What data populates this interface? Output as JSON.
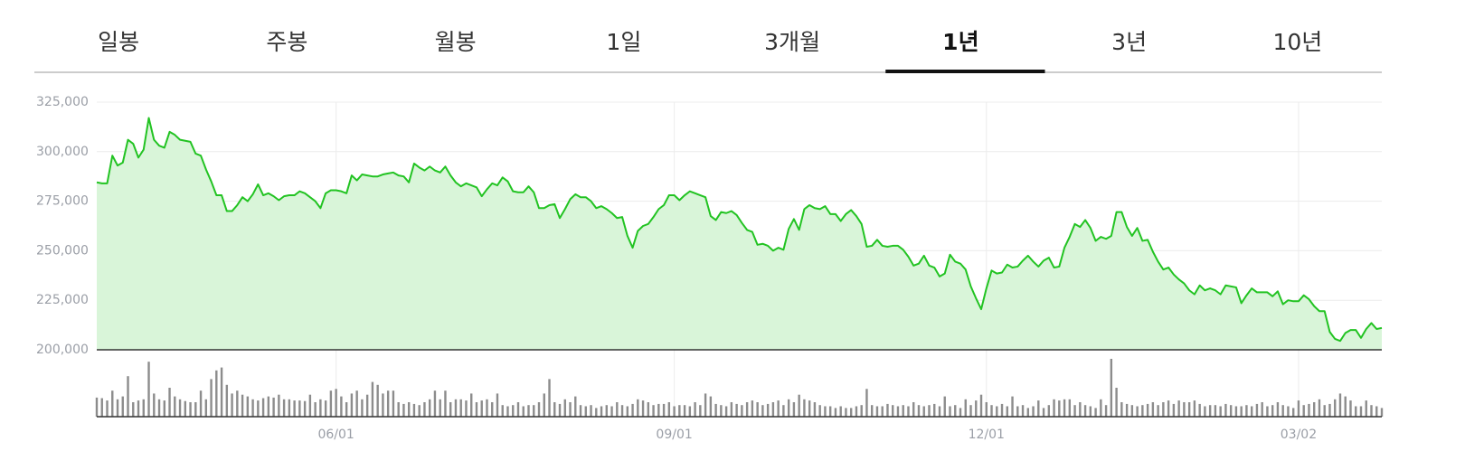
{
  "tabs": {
    "items": [
      "일봉",
      "주봉",
      "월봉",
      "1일",
      "3개월",
      "1년",
      "3년",
      "10년"
    ],
    "active": 5
  },
  "chart_data": {
    "type": "line",
    "categories": [
      null,
      null,
      null,
      null,
      null,
      null,
      null,
      null,
      null,
      null,
      null,
      null,
      null,
      null,
      null,
      null,
      null,
      null,
      null,
      null,
      null,
      null,
      null,
      null,
      null,
      null,
      null,
      null,
      null,
      null,
      null,
      null,
      null,
      null,
      null,
      null,
      null,
      null,
      null,
      null,
      null,
      null,
      null,
      null,
      null,
      null,
      "06/01",
      null,
      null,
      null,
      null,
      null,
      null,
      null,
      null,
      null,
      null,
      null,
      null,
      null,
      null,
      null,
      null,
      null,
      null,
      null,
      null,
      null,
      null,
      null,
      null,
      null,
      null,
      null,
      null,
      null,
      null,
      null,
      null,
      null,
      null,
      null,
      null,
      null,
      null,
      null,
      null,
      null,
      null,
      null,
      null,
      null,
      null,
      null,
      null,
      null,
      null,
      null,
      null,
      null,
      null,
      null,
      null,
      null,
      null,
      null,
      null,
      null,
      null,
      null,
      null,
      "09/01",
      null,
      null,
      null,
      null,
      null,
      null,
      null,
      null,
      null,
      null,
      null,
      null,
      null,
      null,
      null,
      null,
      null,
      null,
      null,
      null,
      null,
      null,
      null,
      null,
      null,
      null,
      null,
      null,
      null,
      null,
      null,
      null,
      null,
      null,
      null,
      null,
      null,
      null,
      null,
      null,
      null,
      null,
      null,
      null,
      null,
      null,
      null,
      null,
      null,
      null,
      null,
      null,
      null,
      null,
      null,
      null,
      null,
      null,
      null,
      "12/01",
      null,
      null,
      null,
      null,
      null,
      null,
      null,
      null,
      null,
      null,
      null,
      null,
      null,
      null,
      null,
      null,
      null,
      null,
      null,
      null,
      null,
      null,
      null,
      null,
      null,
      null,
      null,
      null,
      null,
      null,
      null,
      null,
      null,
      null,
      null,
      null,
      null,
      null,
      null,
      null,
      null,
      null,
      null,
      null,
      null,
      null,
      null,
      null,
      null,
      null,
      null,
      null,
      null,
      null,
      null,
      null,
      null,
      null,
      null,
      "03/02",
      null,
      null,
      null,
      null,
      null,
      null,
      null,
      null,
      null,
      null,
      null,
      null,
      null,
      null,
      null,
      null
    ],
    "series": [
      {
        "type": "area",
        "color": "#22c322",
        "fill": "#d9f5d9",
        "values": [
          284500,
          284000,
          284000,
          298000,
          293000,
          294500,
          306000,
          304000,
          297000,
          301000,
          317000,
          306000,
          303000,
          302000,
          310000,
          308500,
          306000,
          305500,
          305000,
          299000,
          298000,
          291000,
          285000,
          278000,
          278000,
          270000,
          270000,
          273000,
          277000,
          275000,
          278500,
          283500,
          278000,
          279000,
          277500,
          275500,
          277500,
          278000,
          278000,
          280000,
          279000,
          277000,
          275000,
          271500,
          279000,
          280500,
          280500,
          280000,
          279000,
          288000,
          285500,
          288500,
          288000,
          287500,
          287500,
          288500,
          289000,
          289500,
          288000,
          287500,
          284500,
          294000,
          292000,
          290500,
          292500,
          290500,
          289500,
          292500,
          288000,
          284500,
          282500,
          284000,
          283000,
          282000,
          277500,
          281000,
          284000,
          283000,
          287000,
          285000,
          280000,
          279500,
          279500,
          282500,
          279500,
          271500,
          271500,
          273000,
          273500,
          266500,
          271000,
          276000,
          278500,
          277000,
          277000,
          275000,
          271500,
          272500,
          271000,
          269000,
          266500,
          267000,
          257500,
          251500,
          260000,
          262500,
          263500,
          267000,
          271000,
          273000,
          278000,
          278000,
          275500,
          278000,
          280000,
          279000,
          278000,
          277000,
          267500,
          265500,
          269500,
          269000,
          270000,
          268000,
          264000,
          260500,
          259500,
          253000,
          253500,
          252500,
          250000,
          251500,
          250500,
          261000,
          266000,
          260500,
          271000,
          273000,
          271500,
          271000,
          272500,
          268500,
          268500,
          265000,
          268500,
          270500,
          267500,
          263500,
          252000,
          252500,
          255500,
          252500,
          252000,
          252500,
          252500,
          250500,
          247000,
          242500,
          243500,
          247500,
          242500,
          241500,
          237000,
          238500,
          248000,
          244500,
          243500,
          240500,
          232000,
          226000,
          220500,
          231000,
          240000,
          238500,
          239000,
          243000,
          241500,
          242000,
          245000,
          247500,
          244500,
          242000,
          245000,
          246500,
          241500,
          242000,
          251500,
          257000,
          263500,
          262000,
          265500,
          261500,
          255000,
          257000,
          256000,
          257500,
          269500,
          269500,
          262000,
          257500,
          261500,
          255000,
          255500,
          249500,
          244500,
          240500,
          241500,
          238000,
          235500,
          233500,
          230000,
          228000,
          232500,
          230000,
          231000,
          230000,
          228000,
          232500,
          232000,
          231500,
          223500,
          227500,
          231000,
          229000,
          229000,
          229000,
          227000,
          229500,
          223000,
          225000,
          224500,
          224500,
          227500,
          225500,
          222000,
          219500,
          219500,
          209000,
          205500,
          204500,
          208500,
          210000,
          210000,
          206000,
          210500,
          213500,
          210500,
          211000
        ]
      },
      {
        "type": "bar",
        "axis": "y2",
        "color": "#8c8c8c",
        "values": [
          33,
          32,
          28,
          45,
          30,
          35,
          70,
          25,
          28,
          30,
          95,
          40,
          30,
          28,
          50,
          35,
          30,
          27,
          25,
          25,
          45,
          30,
          65,
          80,
          85,
          55,
          40,
          45,
          38,
          35,
          30,
          28,
          32,
          35,
          33,
          38,
          30,
          30,
          28,
          28,
          27,
          38,
          25,
          30,
          28,
          45,
          48,
          35,
          25,
          40,
          45,
          30,
          38,
          60,
          55,
          40,
          45,
          45,
          25,
          22,
          25,
          22,
          20,
          25,
          30,
          45,
          30,
          45,
          25,
          30,
          30,
          28,
          40,
          25,
          28,
          30,
          25,
          40,
          20,
          18,
          20,
          25,
          18,
          20,
          20,
          25,
          40,
          65,
          25,
          22,
          30,
          25,
          35,
          20,
          18,
          20,
          15,
          18,
          20,
          18,
          25,
          20,
          18,
          22,
          30,
          28,
          25,
          20,
          22,
          22,
          25,
          18,
          20,
          20,
          18,
          25,
          20,
          40,
          35,
          22,
          20,
          18,
          25,
          22,
          20,
          25,
          28,
          25,
          20,
          22,
          25,
          28,
          20,
          30,
          25,
          38,
          30,
          28,
          25,
          20,
          18,
          18,
          15,
          18,
          15,
          15,
          18,
          20,
          48,
          20,
          18,
          18,
          22,
          20,
          18,
          20,
          18,
          25,
          20,
          18,
          20,
          22,
          18,
          35,
          18,
          20,
          15,
          30,
          20,
          28,
          38,
          25,
          20,
          18,
          22,
          18,
          35,
          18,
          20,
          15,
          18,
          28,
          15,
          20,
          30,
          28,
          30,
          30,
          20,
          25,
          20,
          18,
          15,
          30,
          20,
          100,
          50,
          25,
          22,
          20,
          18,
          20,
          22,
          25,
          20,
          25,
          28,
          22,
          28,
          25,
          25,
          28,
          22,
          18,
          20,
          20,
          18,
          22,
          20,
          18,
          18,
          20,
          18,
          22,
          25,
          18,
          20,
          25,
          20,
          18,
          15,
          28,
          20,
          22,
          25,
          30,
          20,
          22,
          30,
          40,
          35,
          28,
          18,
          18,
          28,
          20,
          18,
          15
        ]
      }
    ],
    "ylim": [
      200000,
      325000
    ],
    "yticks": [
      {
        "value": 200000,
        "label": "200,000"
      },
      {
        "value": 225000,
        "label": "225,000"
      },
      {
        "value": 250000,
        "label": "250,000"
      },
      {
        "value": 275000,
        "label": "275,000"
      },
      {
        "value": 300000,
        "label": "300,000"
      },
      {
        "value": 325000,
        "label": "325,000"
      }
    ],
    "y2lim": [
      0,
      100
    ],
    "grid": true
  }
}
